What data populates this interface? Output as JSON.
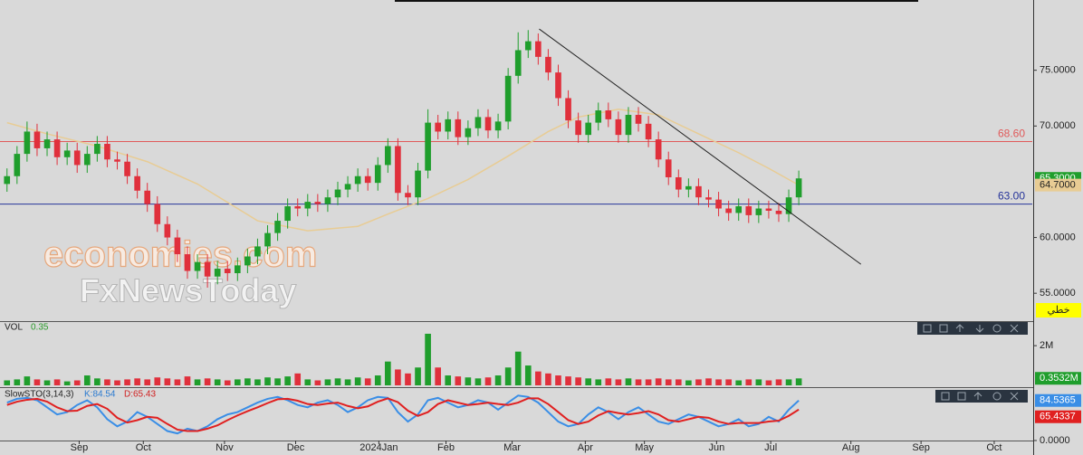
{
  "chart_data": {
    "type": "candlestick",
    "xlim": [
      -0.7,
      102.3
    ],
    "xticks": [
      {
        "value": 7.2,
        "label": "Sep"
      },
      {
        "value": 13.6,
        "label": "Oct"
      },
      {
        "value": 21.7,
        "label": "Nov"
      },
      {
        "value": 28.8,
        "label": "Dec"
      },
      {
        "value": 37.1,
        "label": "2024Jan"
      },
      {
        "value": 43.8,
        "label": "Feb"
      },
      {
        "value": 50.4,
        "label": "Mar"
      },
      {
        "value": 57.7,
        "label": "Apr"
      },
      {
        "value": 63.6,
        "label": "May"
      },
      {
        "value": 70.8,
        "label": "Jun"
      },
      {
        "value": 76.2,
        "label": "Jul"
      },
      {
        "value": 84.2,
        "label": "Aug"
      },
      {
        "value": 91.2,
        "label": "Sep"
      },
      {
        "value": 98.5,
        "label": "Oct"
      }
    ],
    "ylim": [
      52.5,
      81.3
    ],
    "yticks": [
      {
        "value": 55,
        "label": "55.0000"
      },
      {
        "value": 60,
        "label": "60.0000"
      },
      {
        "value": 70,
        "label": "70.0000"
      },
      {
        "value": 75,
        "label": "75.0000"
      }
    ],
    "up_color": "#1f9e2c",
    "down_color": "#e0303c",
    "open": [
      64.8,
      65.5,
      67.5,
      69.5,
      68,
      68.8,
      67.2,
      67.8,
      66.5,
      67.5,
      68.4,
      67,
      66.8,
      65.5,
      64.2,
      63,
      61.2,
      60,
      58.5,
      57,
      57.8,
      56.5,
      57.2,
      56.8,
      57.5,
      58.3,
      59.2,
      60.4,
      61.5,
      62.8,
      62.6,
      63.2,
      63,
      63.6,
      64.3,
      64.8,
      65.5,
      64.9,
      66.5,
      68.2,
      64,
      63.6,
      66,
      70.3,
      69.5,
      70.6,
      69,
      69.8,
      70.8,
      69.6,
      70.4,
      74.5,
      76.8,
      77.6,
      76.2,
      74.8,
      72.5,
      70.5,
      69.2,
      70.3,
      71.4,
      70.6,
      69.2,
      71,
      70.2,
      68.8,
      67,
      65.4,
      64.3,
      64.6,
      63.6,
      63.4,
      62.6,
      62.2,
      62.8,
      62,
      62.6,
      62.4,
      62.1,
      63.6
    ],
    "high": [
      66.2,
      68.2,
      70.4,
      70.2,
      69.5,
      69.5,
      68.5,
      68.5,
      68.2,
      69.1,
      69.1,
      67.7,
      67.5,
      66.2,
      64.9,
      63.7,
      61.9,
      60.7,
      59.2,
      58.5,
      58.5,
      57.9,
      57.9,
      58.2,
      59,
      59.9,
      61.1,
      62.2,
      63.5,
      63.5,
      63.9,
      63.9,
      64.3,
      65,
      65.5,
      66.2,
      66.2,
      67.2,
      68.9,
      68.9,
      64.7,
      66.7,
      71.5,
      71,
      71.3,
      71.3,
      70.5,
      71.5,
      71.5,
      71.1,
      75.2,
      78.4,
      78.6,
      78.3,
      76.9,
      75.5,
      73.2,
      71.2,
      71,
      72.1,
      72.1,
      71.3,
      71.7,
      71.7,
      70.9,
      69.5,
      67.7,
      66.1,
      65.3,
      65.3,
      64.3,
      64.1,
      63.3,
      63.5,
      63.5,
      63.3,
      63.3,
      63.1,
      64.3,
      66
    ],
    "low": [
      64.1,
      64.8,
      66.8,
      67.3,
      67.3,
      66.5,
      66.5,
      65.8,
      65.8,
      66.8,
      66.3,
      66.1,
      64.8,
      63.5,
      62.3,
      60.5,
      59.3,
      57.8,
      56.3,
      56.3,
      55.5,
      55.8,
      56.1,
      56.1,
      56.8,
      57.6,
      58.5,
      59.7,
      60.8,
      61.9,
      61.9,
      62.3,
      62.3,
      62.9,
      63.6,
      64.1,
      64.2,
      64.2,
      65.8,
      63.3,
      62.9,
      62.9,
      65.3,
      68.8,
      68.8,
      68.3,
      68.3,
      69.1,
      68.9,
      68.9,
      69.7,
      73.8,
      76.1,
      75.5,
      74.1,
      71.8,
      69.8,
      68.5,
      68.5,
      69.6,
      69.9,
      68.5,
      68.5,
      69.5,
      68.1,
      66.3,
      64.7,
      63.6,
      63.6,
      62.9,
      62.7,
      61.9,
      61.5,
      61.5,
      61.3,
      61.3,
      61.7,
      61.4,
      61.4,
      62.9
    ],
    "close": [
      65.5,
      67.5,
      69.5,
      68,
      68.8,
      67.2,
      67.8,
      66.5,
      67.5,
      68.4,
      67,
      66.8,
      65.5,
      64.2,
      63,
      61.2,
      60,
      58.5,
      57,
      57.8,
      56.5,
      57.2,
      56.8,
      57.5,
      58.3,
      59.2,
      60.4,
      61.5,
      62.8,
      62.6,
      63.2,
      63,
      63.6,
      64.3,
      64.8,
      65.5,
      64.9,
      66.5,
      68.2,
      64,
      63.6,
      66,
      70.3,
      69.5,
      70.6,
      69,
      69.8,
      70.8,
      69.6,
      70.4,
      74.5,
      76.8,
      77.6,
      76.2,
      74.8,
      72.5,
      70.5,
      69.2,
      70.3,
      71.4,
      70.6,
      69.2,
      71,
      70.2,
      68.8,
      67,
      65.4,
      64.3,
      64.6,
      63.6,
      63.4,
      62.6,
      62.2,
      62.8,
      62,
      62.6,
      62.4,
      62.1,
      63.6,
      65.3
    ],
    "moving_average": {
      "color": "#e8cc94",
      "x": [
        0,
        4,
        9,
        14,
        19,
        25,
        30,
        35,
        38,
        42,
        46,
        50,
        54,
        57,
        61,
        65,
        69,
        73,
        76,
        79
      ],
      "values": [
        70.3,
        69.3,
        68.2,
        66.8,
        64.8,
        61.5,
        60.6,
        61,
        62.1,
        63.5,
        65.2,
        67.3,
        69.5,
        70.8,
        71.5,
        71,
        69.3,
        67.6,
        66.2,
        64.7
      ]
    },
    "trendline": {
      "color": "#222222",
      "x": [
        53.1,
        85.2
      ],
      "values": [
        78.7,
        57.6
      ]
    },
    "levels": [
      {
        "value": 68.6,
        "label": "68.60",
        "color": "#e05a5a"
      },
      {
        "value": 63,
        "label": "63.00",
        "color": "#26349a"
      }
    ],
    "price_labels": [
      {
        "value": 65.3,
        "label": "65.3000",
        "color": "#1f9e2c"
      },
      {
        "value": 64.7,
        "label": "64.7000",
        "color": "#e8cc94"
      }
    ],
    "chart_style_label": "خطي",
    "watermark": [
      "economies.com",
      "FxNewsToday"
    ],
    "volume": {
      "title": "VOL",
      "last": "0.35",
      "ylim": [
        0,
        3.1
      ],
      "yticks": [
        {
          "value": 2,
          "label": "2M"
        }
      ],
      "values": [
        0.25,
        0.3,
        0.45,
        0.3,
        0.25,
        0.3,
        0.2,
        0.25,
        0.5,
        0.35,
        0.3,
        0.25,
        0.3,
        0.35,
        0.3,
        0.4,
        0.35,
        0.3,
        0.45,
        0.3,
        0.35,
        0.3,
        0.25,
        0.3,
        0.35,
        0.3,
        0.4,
        0.35,
        0.45,
        0.6,
        0.3,
        0.25,
        0.3,
        0.35,
        0.3,
        0.4,
        0.35,
        0.5,
        1.2,
        0.8,
        0.6,
        0.9,
        2.6,
        0.9,
        0.5,
        0.45,
        0.4,
        0.35,
        0.4,
        0.5,
        0.9,
        1.7,
        1.0,
        0.7,
        0.6,
        0.5,
        0.45,
        0.4,
        0.35,
        0.3,
        0.35,
        0.3,
        0.35,
        0.3,
        0.3,
        0.35,
        0.3,
        0.3,
        0.25,
        0.3,
        0.35,
        0.3,
        0.3,
        0.25,
        0.3,
        0.3,
        0.25,
        0.3,
        0.3,
        0.35
      ],
      "current": {
        "value": 0.3532,
        "label": "0.3532M"
      }
    },
    "stochastic": {
      "title": "SlowSTO(3,14,3)",
      "k_label": "K:84.54",
      "d_label": "D:65.43",
      "ylim": [
        0,
        105
      ],
      "yticks": [
        {
          "value": 0,
          "label": "0.0000"
        }
      ],
      "k": {
        "color": "#3a8ee6",
        "values": [
          80,
          88,
          90,
          85,
          70,
          55,
          60,
          75,
          85,
          70,
          45,
          30,
          40,
          60,
          50,
          35,
          20,
          15,
          25,
          20,
          30,
          45,
          55,
          60,
          70,
          80,
          88,
          92,
          85,
          75,
          70,
          80,
          85,
          75,
          60,
          70,
          85,
          92,
          90,
          60,
          40,
          55,
          85,
          90,
          80,
          70,
          75,
          85,
          80,
          65,
          80,
          95,
          92,
          80,
          60,
          40,
          30,
          35,
          55,
          70,
          60,
          45,
          60,
          70,
          55,
          40,
          35,
          45,
          55,
          50,
          40,
          30,
          35,
          45,
          30,
          35,
          50,
          40,
          65,
          84.54
        ]
      },
      "d": {
        "color": "#e02020",
        "values": [
          75,
          82,
          86,
          88,
          82,
          70,
          62,
          63,
          73,
          77,
          67,
          48,
          38,
          43,
          50,
          48,
          35,
          23,
          20,
          20,
          25,
          32,
          43,
          53,
          62,
          70,
          79,
          87,
          88,
          84,
          77,
          75,
          78,
          80,
          73,
          68,
          72,
          82,
          89,
          81,
          63,
          52,
          60,
          77,
          85,
          80,
          75,
          77,
          80,
          77,
          75,
          80,
          89,
          89,
          77,
          60,
          43,
          35,
          40,
          53,
          62,
          58,
          55,
          58,
          62,
          55,
          43,
          40,
          45,
          50,
          48,
          40,
          35,
          37,
          37,
          37,
          40,
          42,
          52,
          65.43
        ]
      },
      "current": [
        {
          "value": 84.5365,
          "label": "84.5365",
          "color": "#3a8ee6"
        },
        {
          "value": 65.4337,
          "label": "65.4337",
          "color": "#e02020"
        }
      ]
    }
  }
}
